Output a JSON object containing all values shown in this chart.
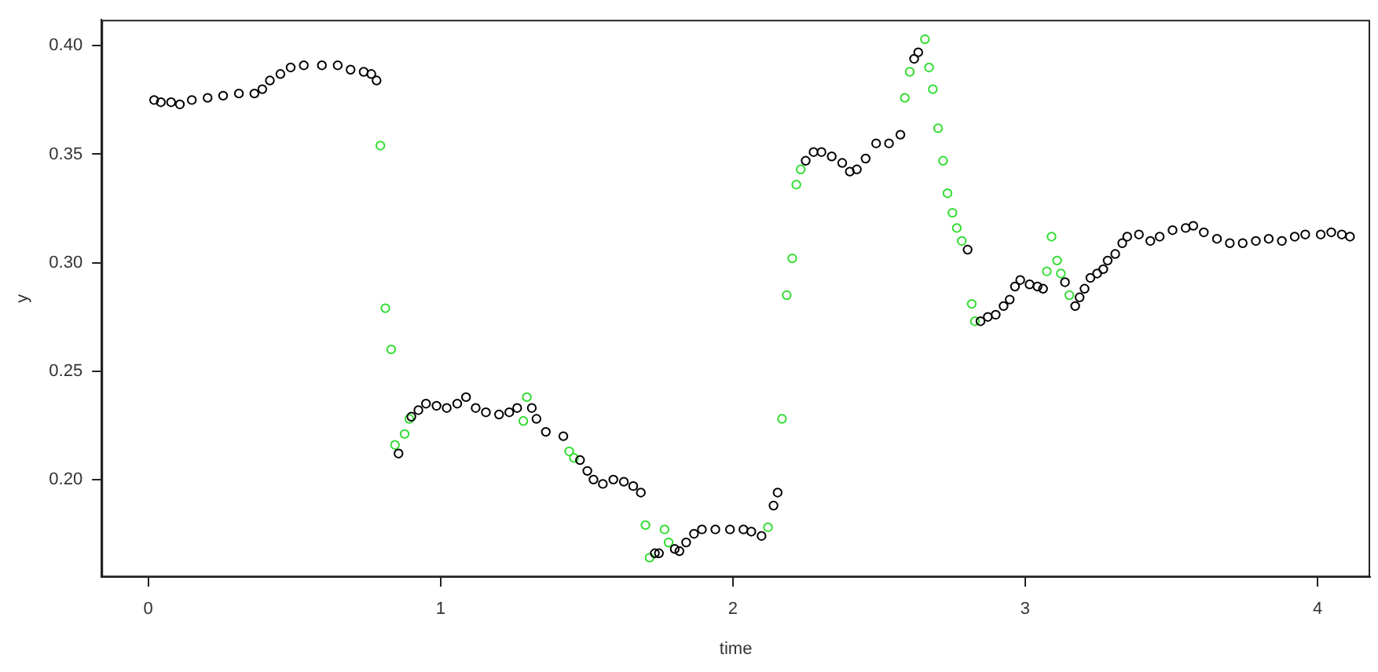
{
  "chart_data": {
    "type": "scatter",
    "xlabel": "time",
    "ylabel": "y",
    "xlim": [
      -0.16,
      4.18
    ],
    "ylim": [
      0.155,
      0.412
    ],
    "xticks": [
      0,
      1,
      2,
      3,
      4
    ],
    "yticks": [
      {
        "value": 0.2,
        "label": "0.20"
      },
      {
        "value": 0.25,
        "label": "0.25"
      },
      {
        "value": 0.3,
        "label": "0.30"
      },
      {
        "value": 0.35,
        "label": "0.35"
      },
      {
        "value": 0.4,
        "label": "0.40"
      }
    ],
    "grid": false,
    "legend": false,
    "marker": "circle",
    "series": [
      {
        "color": "#000000",
        "x": [
          0.02,
          0.043,
          0.078,
          0.108,
          0.149,
          0.203,
          0.256,
          0.31,
          0.363,
          0.39,
          0.416,
          0.452,
          0.487,
          0.532,
          0.594,
          0.648,
          0.692,
          0.737,
          0.763,
          0.781,
          0.856,
          0.9,
          0.924,
          0.95,
          0.986,
          1.021,
          1.057,
          1.087,
          1.12,
          1.155,
          1.2,
          1.235,
          1.262,
          1.312,
          1.328,
          1.36,
          1.42,
          1.477,
          1.502,
          1.523,
          1.555,
          1.591,
          1.627,
          1.659,
          1.685,
          1.733,
          1.747,
          1.801,
          1.817,
          1.84,
          1.867,
          1.894,
          1.94,
          1.99,
          2.036,
          2.063,
          2.098,
          2.139,
          2.153,
          2.249,
          2.276,
          2.303,
          2.338,
          2.374,
          2.4,
          2.424,
          2.454,
          2.49,
          2.534,
          2.573,
          2.62,
          2.634,
          2.803,
          2.847,
          2.872,
          2.899,
          2.926,
          2.947,
          2.965,
          2.983,
          3.015,
          3.042,
          3.061,
          3.136,
          3.171,
          3.186,
          3.203,
          3.223,
          3.246,
          3.267,
          3.282,
          3.308,
          3.332,
          3.349,
          3.389,
          3.428,
          3.46,
          3.504,
          3.549,
          3.575,
          3.611,
          3.656,
          3.7,
          3.744,
          3.789,
          3.833,
          3.878,
          3.922,
          3.958,
          4.011,
          4.047,
          4.083,
          4.111
        ],
        "values": [
          0.375,
          0.374,
          0.374,
          0.373,
          0.375,
          0.376,
          0.377,
          0.378,
          0.378,
          0.38,
          0.384,
          0.387,
          0.39,
          0.391,
          0.391,
          0.391,
          0.389,
          0.388,
          0.387,
          0.384,
          0.212,
          0.229,
          0.232,
          0.235,
          0.234,
          0.233,
          0.235,
          0.238,
          0.233,
          0.231,
          0.23,
          0.231,
          0.233,
          0.233,
          0.228,
          0.222,
          0.22,
          0.209,
          0.204,
          0.2,
          0.198,
          0.2,
          0.199,
          0.197,
          0.194,
          0.166,
          0.166,
          0.168,
          0.167,
          0.171,
          0.175,
          0.177,
          0.177,
          0.177,
          0.177,
          0.176,
          0.174,
          0.188,
          0.194,
          0.347,
          0.351,
          0.351,
          0.349,
          0.346,
          0.342,
          0.343,
          0.348,
          0.355,
          0.355,
          0.359,
          0.394,
          0.397,
          0.306,
          0.273,
          0.275,
          0.276,
          0.28,
          0.283,
          0.289,
          0.292,
          0.29,
          0.289,
          0.288,
          0.291,
          0.28,
          0.284,
          0.288,
          0.293,
          0.295,
          0.297,
          0.301,
          0.304,
          0.309,
          0.312,
          0.313,
          0.31,
          0.312,
          0.315,
          0.316,
          0.317,
          0.314,
          0.311,
          0.309,
          0.309,
          0.31,
          0.311,
          0.31,
          0.312,
          0.313,
          0.313,
          0.314,
          0.313,
          0.312
        ]
      },
      {
        "color": "#33dd33",
        "x": [
          0.794,
          0.811,
          0.831,
          0.844,
          0.877,
          0.893,
          1.283,
          1.295,
          1.44,
          1.456,
          1.701,
          1.715,
          1.766,
          1.78,
          2.12,
          2.168,
          2.184,
          2.203,
          2.217,
          2.232,
          2.588,
          2.605,
          2.657,
          2.671,
          2.684,
          2.702,
          2.719,
          2.734,
          2.751,
          2.766,
          2.783,
          2.817,
          2.828,
          3.074,
          3.09,
          3.109,
          3.122,
          3.151
        ],
        "values": [
          0.354,
          0.279,
          0.26,
          0.216,
          0.221,
          0.228,
          0.227,
          0.238,
          0.213,
          0.21,
          0.179,
          0.164,
          0.177,
          0.171,
          0.178,
          0.228,
          0.285,
          0.302,
          0.336,
          0.343,
          0.376,
          0.388,
          0.403,
          0.39,
          0.38,
          0.362,
          0.347,
          0.332,
          0.323,
          0.316,
          0.31,
          0.281,
          0.273,
          0.296,
          0.312,
          0.301,
          0.295,
          0.285
        ]
      }
    ]
  }
}
